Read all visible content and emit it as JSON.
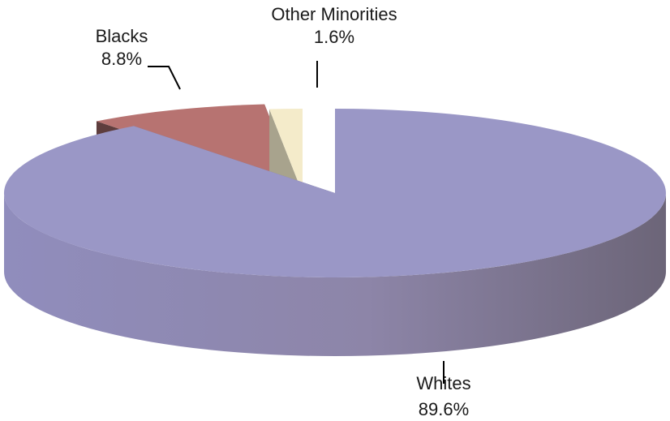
{
  "chart_data": {
    "type": "pie",
    "style": "3d-exploded",
    "title": "",
    "slices": [
      {
        "name": "Whites",
        "value": 89.6,
        "label": "89.6%",
        "color": "#9a97c6"
      },
      {
        "name": "Blacks",
        "value": 8.8,
        "label": "8.8%",
        "color": "#b77371"
      },
      {
        "name": "Other Minorities",
        "value": 1.6,
        "label": "1.6%",
        "color": "#f4ebca"
      }
    ],
    "legend": "none",
    "labels": "outside-with-leaders"
  }
}
